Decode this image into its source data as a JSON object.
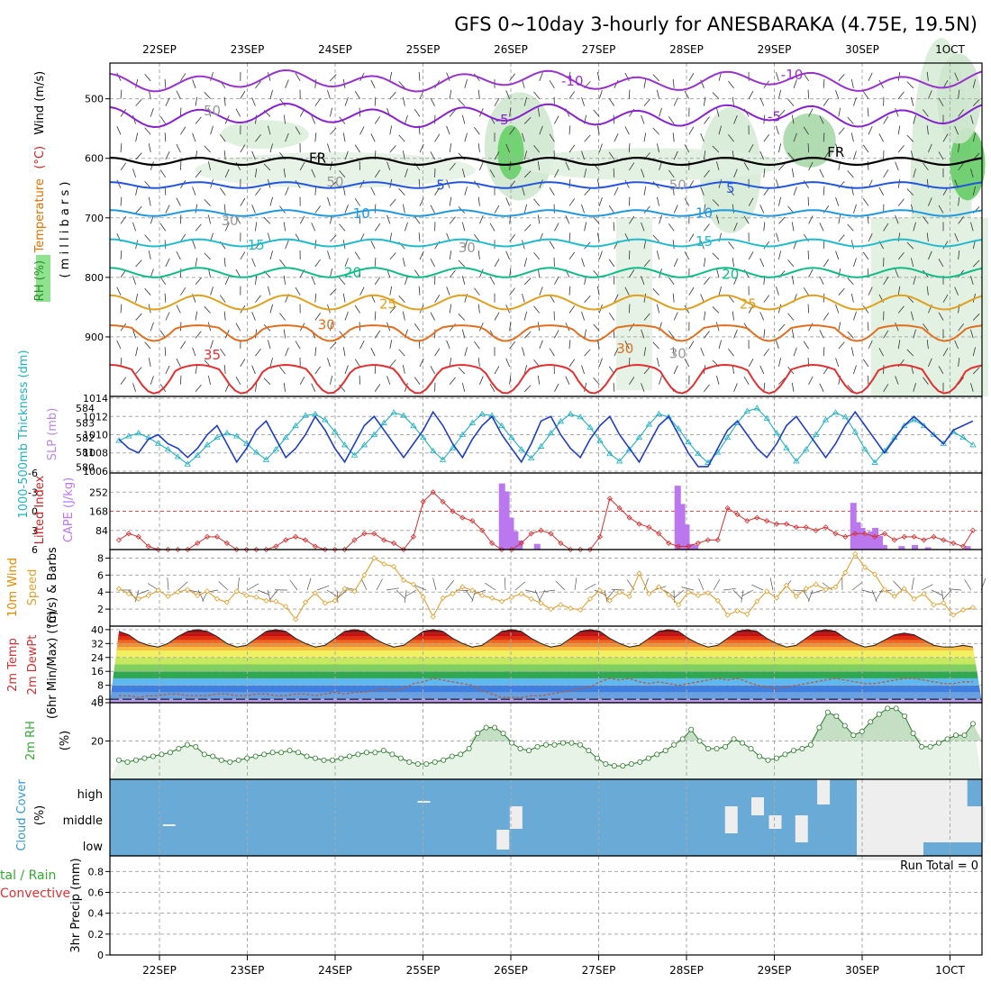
{
  "title": "GFS 0~10day 3-hourly for ANESBARAKA (4.75E, 19.5N)",
  "chart_data": [
    {
      "type": "line",
      "panel": "upper-air",
      "ylabel_parts": [
        {
          "text": "RH (%)",
          "color": "#2e8b2e"
        },
        {
          "text": "Temperature",
          "color": "#e07000"
        },
        {
          "text": "(°C)",
          "color": "#cc2222"
        },
        {
          "text": "Wind (m/s)",
          "color": "#000000"
        }
      ],
      "ylabel2": "( m i l l i b a r s )",
      "ylim": [
        440,
        1000
      ],
      "yticks": [
        500,
        600,
        700,
        800,
        900
      ],
      "x_ticks": [
        "22SEP",
        "23SEP",
        "24SEP",
        "25SEP",
        "26SEP",
        "27SEP",
        "28SEP",
        "29SEP",
        "30SEP",
        "1OCT"
      ],
      "contour_labels": [
        "-10",
        "-10",
        "-5",
        "-5",
        "FR",
        "FR",
        "5",
        "5",
        "10",
        "10",
        "15",
        "15",
        "20",
        "20",
        "25",
        "25",
        "30",
        "30",
        "35",
        "30",
        "30",
        "30",
        "50",
        "50",
        "50"
      ],
      "isotherms": [
        {
          "level": "-10",
          "color": "#9933cc",
          "base_mb": 470,
          "amp": 12
        },
        {
          "level": "-5",
          "color": "#8822cc",
          "base_mb": 528,
          "amp": 14
        },
        {
          "level": "FR",
          "color": "#000000",
          "base_mb": 605,
          "amp": 6
        },
        {
          "level": "5",
          "color": "#2255dd",
          "base_mb": 645,
          "amp": 5
        },
        {
          "level": "10",
          "color": "#2299dd",
          "base_mb": 692,
          "amp": 5
        },
        {
          "level": "15",
          "color": "#22bbcc",
          "base_mb": 742,
          "amp": 6
        },
        {
          "level": "20",
          "color": "#11bb88",
          "base_mb": 792,
          "amp": 8
        },
        {
          "level": "25",
          "color": "#e0a020",
          "base_mb": 842,
          "amp": 12
        },
        {
          "level": "30",
          "color": "#e07020",
          "base_mb": 885,
          "amp": 22
        },
        {
          "level": "35",
          "color": "#e03030",
          "base_mb": 955,
          "amp": 40
        }
      ]
    },
    {
      "type": "line",
      "panel": "thickness-slp",
      "ylabel_left": "1000-500mb Thickness (dm)",
      "ylabel_right": "SLP (mb)",
      "left_ticks": [
        580,
        581,
        582,
        583,
        584
      ],
      "right_ticks": [
        1006,
        1008,
        1010,
        1012,
        1014
      ],
      "series": [
        {
          "name": "thickness",
          "color": "#22b0c0",
          "values": [
            581.8,
            582.1,
            582.3,
            582.0,
            581.6,
            581.2,
            580.7,
            580.2,
            580.8,
            581.5,
            582.0,
            582.3,
            582.1,
            581.6,
            581.0,
            580.5,
            581.2,
            582.0,
            582.8,
            583.5,
            583.6,
            583.2,
            582.4,
            581.5,
            580.8,
            581.5,
            582.2,
            583.0,
            583.7,
            583.5,
            582.8,
            582.0,
            581.1,
            580.5,
            581.3,
            582.2,
            583.0,
            583.6,
            583.5,
            582.8,
            582.0,
            581.2,
            580.6,
            581.4,
            582.3,
            583.1,
            583.6,
            583.4,
            582.7,
            581.8,
            580.9,
            580.4,
            581.2,
            582.0,
            582.9,
            583.6,
            583.4,
            582.6,
            581.7,
            580.9,
            580.3,
            581.0,
            582.0,
            583.0,
            583.8,
            584.0,
            583.3,
            582.3,
            581.3,
            580.4,
            581.2,
            582.2,
            583.2,
            583.7,
            583.4,
            582.4,
            581.2,
            580.3,
            581.1,
            582.0,
            582.8,
            583.2,
            582.8,
            582.2,
            581.6,
            582.4,
            582.0,
            581.5
          ]
        },
        {
          "name": "SLP",
          "color": "#1f3fc0",
          "values": [
            1009.5,
            1008.5,
            1008.0,
            1009.5,
            1010.0,
            1009.0,
            1008.5,
            1007.5,
            1008.5,
            1010.0,
            1011.0,
            1009.0,
            1007.0,
            1008.5,
            1010.5,
            1011.5,
            1009.5,
            1007.5,
            1008.5,
            1010.0,
            1012.0,
            1010.5,
            1008.5,
            1007.0,
            1009.0,
            1011.0,
            1012.0,
            1010.5,
            1009.0,
            1007.5,
            1009.0,
            1010.5,
            1012.5,
            1011.0,
            1009.0,
            1007.5,
            1009.5,
            1011.0,
            1012.0,
            1010.0,
            1008.5,
            1007.0,
            1009.0,
            1011.5,
            1012.0,
            1010.0,
            1008.5,
            1007.5,
            1009.5,
            1011.0,
            1012.0,
            1010.0,
            1008.5,
            1007.0,
            1009.0,
            1011.0,
            1012.0,
            1010.0,
            1008.0,
            1006.5,
            1006.5,
            1008.5,
            1010.5,
            1011.5,
            1010.0,
            1008.5,
            1007.5,
            1009.0,
            1011.0,
            1012.0,
            1010.5,
            1009.0,
            1007.5,
            1009.0,
            1011.0,
            1012.5,
            1011.0,
            1009.5,
            1008.0,
            1009.5,
            1011.0,
            1012.0,
            1011.0,
            1010.0,
            1009.0,
            1010.5,
            1011.0,
            1011.5
          ]
        }
      ]
    },
    {
      "type": "bar",
      "panel": "cape-lifted-index",
      "ylabel_left": "Lifted Index",
      "ylabel_right": "CAPE (J/kg)",
      "li_ticks": [
        "-6",
        "-3",
        "0",
        "3",
        "6"
      ],
      "cape_ticks": [
        "84",
        "168",
        "252"
      ],
      "cape_bars": [
        {
          "x": 3.9,
          "v": 290
        },
        {
          "x": 3.95,
          "v": 255
        },
        {
          "x": 4.0,
          "v": 140
        },
        {
          "x": 4.05,
          "v": 80
        },
        {
          "x": 4.1,
          "v": 40
        },
        {
          "x": 4.3,
          "v": 25
        },
        {
          "x": 5.9,
          "v": 280
        },
        {
          "x": 5.95,
          "v": 200
        },
        {
          "x": 6.0,
          "v": 110
        },
        {
          "x": 6.05,
          "v": 25
        },
        {
          "x": 6.1,
          "v": 20
        },
        {
          "x": 7.9,
          "v": 205
        },
        {
          "x": 7.95,
          "v": 120
        },
        {
          "x": 8.0,
          "v": 95
        },
        {
          "x": 8.05,
          "v": 65
        },
        {
          "x": 8.1,
          "v": 80
        },
        {
          "x": 8.15,
          "v": 95
        },
        {
          "x": 8.2,
          "v": 60
        },
        {
          "x": 8.25,
          "v": 20
        },
        {
          "x": 8.45,
          "v": 15
        },
        {
          "x": 8.6,
          "v": 20
        },
        {
          "x": 8.75,
          "v": 10
        },
        {
          "x": 9.2,
          "v": 15
        }
      ],
      "li_values": [
        4.5,
        3.5,
        4.0,
        5.5,
        6.5,
        7.0,
        7.0,
        6.5,
        5.0,
        4.0,
        4.0,
        5.0,
        6.0,
        6.5,
        7.0,
        6.5,
        5.5,
        4.5,
        4.0,
        4.5,
        5.5,
        6.0,
        6.5,
        6.0,
        4.5,
        3.5,
        3.5,
        4.5,
        5.0,
        6.0,
        4.0,
        -1.5,
        -3.0,
        -1.5,
        0,
        1.0,
        1.5,
        3.0,
        5.0,
        6.5,
        6.5,
        5.0,
        3.5,
        3.0,
        3.5,
        5.0,
        6.0,
        6.5,
        6.0,
        4.0,
        -2.0,
        -0.5,
        1.0,
        2.0,
        2.5,
        3.5,
        5.0,
        5.5,
        5.5,
        5.0,
        4.5,
        4.5,
        -0.5,
        0.5,
        1.5,
        1.0,
        1.5,
        2.0,
        2.0,
        2.5,
        2.5,
        3.0,
        2.5,
        3.5,
        4.0,
        3.5,
        3.5,
        4.0,
        3.5,
        4.5,
        4.0,
        4.0,
        4.5,
        4.0,
        4.5,
        5.0,
        5.5,
        3.0
      ]
    },
    {
      "type": "line",
      "panel": "wind-10m",
      "ylabel": "10m Wind Speed (m/s) & Barbs",
      "yticks": [
        2,
        4,
        6,
        8
      ],
      "ylim": [
        0,
        9
      ],
      "series": [
        {
          "name": "10m wind speed",
          "color": "#e0a030",
          "values": [
            4.4,
            3.8,
            3.2,
            3.6,
            4.2,
            3.5,
            4.0,
            4.3,
            3.6,
            4.1,
            3.2,
            2.8,
            4.1,
            3.6,
            3.4,
            3.0,
            2.9,
            2.3,
            0.8,
            2.8,
            3.9,
            2.7,
            3.0,
            4.4,
            4.1,
            6.0,
            8.0,
            7.3,
            7.0,
            5.4,
            4.9,
            3.4,
            1.1,
            3.3,
            3.8,
            4.6,
            4.2,
            3.6,
            3.3,
            2.9,
            3.4,
            3.8,
            3.2,
            2.7,
            2.0,
            2.5,
            2.1,
            1.9,
            3.2,
            4.2,
            3.0,
            4.0,
            3.5,
            6.2,
            3.8,
            4.6,
            3.7,
            2.5,
            4.0,
            3.6,
            3.9,
            3.0,
            1.3,
            1.8,
            1.4,
            2.9,
            4.1,
            3.3,
            4.8,
            3.5,
            4.4,
            4.9,
            4.3,
            4.6,
            6.3,
            8.5,
            6.9,
            6.1,
            4.3,
            3.5,
            4.4,
            3.2,
            3.8,
            2.5,
            2.7,
            1.3,
            1.9,
            2.2
          ]
        }
      ]
    },
    {
      "type": "area",
      "panel": "temp-2m",
      "ylabel": "2m Temp 2m DewPt (6hr Min/Max) (°C)",
      "yticks": [
        0,
        8,
        16,
        24,
        32,
        40
      ],
      "ylim": [
        -2,
        42
      ],
      "series": [
        {
          "name": "2m Temp",
          "values": [
            39,
            37,
            33,
            31,
            30,
            32,
            36,
            39,
            40,
            39,
            36,
            32,
            30,
            31,
            35,
            39,
            40,
            39,
            35,
            32,
            30,
            31,
            35,
            39,
            40,
            39,
            35,
            32,
            30,
            31,
            35,
            39,
            40,
            39,
            35,
            32,
            30,
            31,
            35,
            39,
            40,
            39,
            35,
            32,
            30,
            31,
            35,
            39,
            40,
            39,
            35,
            32,
            30,
            31,
            35,
            39,
            40,
            39,
            35,
            32,
            30,
            31,
            35,
            39,
            40,
            39,
            35,
            32,
            30,
            31,
            35,
            39,
            40,
            39,
            35,
            32,
            30,
            31,
            34,
            37,
            38,
            37,
            34,
            31,
            30,
            30,
            31,
            30
          ]
        },
        {
          "name": "2m DewPt",
          "values": [
            2,
            2,
            1,
            2,
            2,
            3,
            3,
            2,
            2,
            2,
            3,
            3,
            2,
            2,
            3,
            3,
            2,
            2,
            3,
            3,
            2,
            3,
            4,
            3,
            4,
            4,
            5,
            6,
            5,
            6,
            9,
            10,
            12,
            11,
            10,
            9,
            8,
            5,
            3,
            1,
            1,
            1,
            2,
            2,
            3,
            4,
            5,
            6,
            7,
            10,
            12,
            11,
            12,
            10,
            9,
            10,
            9,
            8,
            9,
            10,
            11,
            12,
            11,
            12,
            10,
            8,
            7,
            6,
            7,
            8,
            9,
            10,
            11,
            12,
            11,
            10,
            9,
            9,
            10,
            11,
            12,
            12,
            11,
            10,
            9,
            9,
            10,
            10
          ]
        }
      ]
    },
    {
      "type": "area",
      "panel": "rh-2m",
      "ylabel": "2m RH (%)",
      "yticks": [
        20,
        40
      ],
      "ylim": [
        0,
        40
      ],
      "series": [
        {
          "name": "2m RH",
          "values": [
            10,
            9,
            10,
            11,
            12,
            13,
            14,
            16,
            18,
            17,
            13,
            12,
            10,
            9,
            10,
            11,
            12,
            13,
            14,
            14,
            15,
            14,
            12,
            11,
            10,
            10,
            11,
            12,
            13,
            14,
            14,
            15,
            13,
            11,
            9,
            8,
            8,
            9,
            10,
            12,
            13,
            16,
            24,
            27,
            27,
            24,
            19,
            16,
            15,
            17,
            18,
            18,
            19,
            19,
            18,
            15,
            11,
            8,
            7,
            7,
            8,
            9,
            11,
            13,
            15,
            18,
            21,
            26,
            20,
            16,
            16,
            17,
            21,
            19,
            16,
            12,
            10,
            11,
            13,
            15,
            16,
            18,
            27,
            35,
            33,
            28,
            23,
            25,
            30,
            34,
            37,
            37,
            33,
            24,
            17,
            17,
            19,
            21,
            23,
            23,
            29
          ]
        }
      ]
    },
    {
      "type": "heatmap",
      "panel": "cloud-cover",
      "ylabel": "Cloud Cover (%)",
      "rows": [
        "high",
        "middle",
        "low"
      ]
    },
    {
      "type": "bar",
      "panel": "precip",
      "ylabel": "3hr Precip (mm)",
      "legend_left": [
        "tal / Rain",
        "Convective"
      ],
      "yticks": [
        "0",
        "0.2",
        "0.4",
        "0.6",
        "0.8"
      ],
      "annotation": "Run Total = 0"
    }
  ]
}
